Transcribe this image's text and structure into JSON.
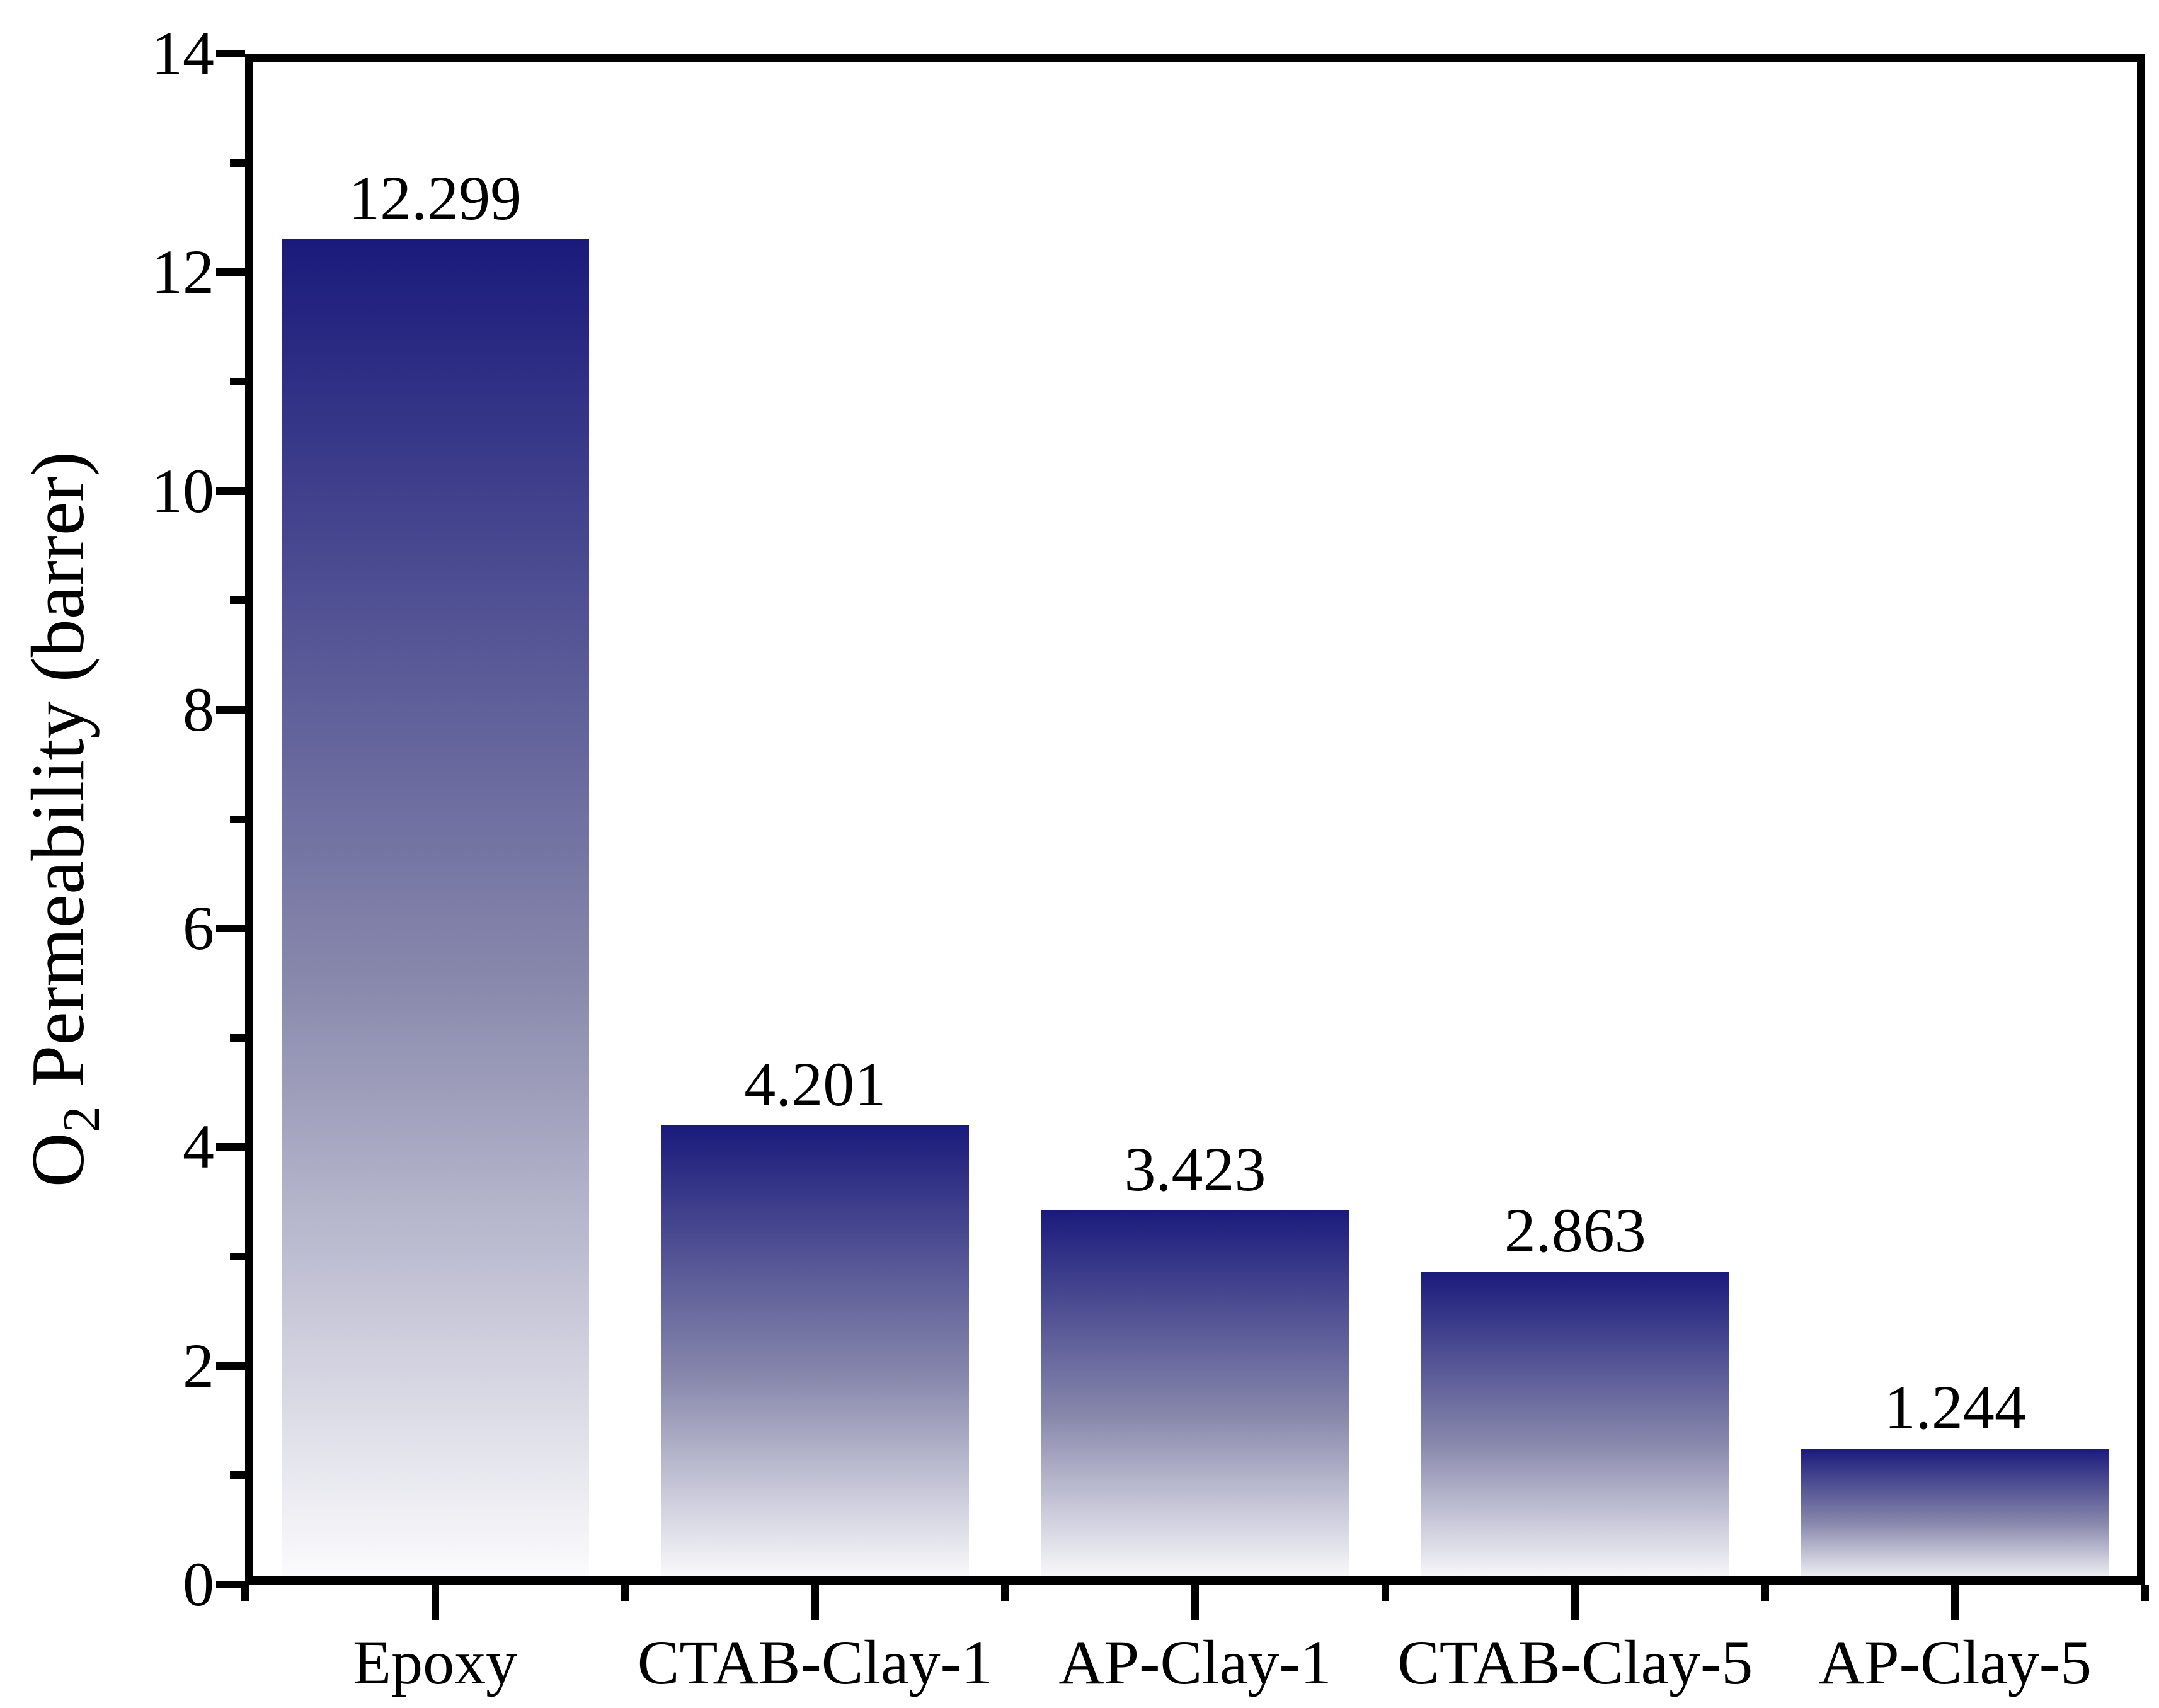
{
  "chart_data": {
    "type": "bar",
    "title": "",
    "categories": [
      "Epoxy",
      "CTAB-Clay-1",
      "AP-Clay-1",
      "CTAB-Clay-5",
      "AP-Clay-5"
    ],
    "values": [
      12.299,
      4.201,
      3.423,
      2.863,
      1.244
    ],
    "value_labels": [
      "12.299",
      "4.201",
      "3.423",
      "2.863",
      "1.244"
    ],
    "xlabel": "",
    "ylabel": "O2 Permeability (barrer)",
    "ylabel_parts": {
      "base": "O",
      "sub": "2",
      "rest": " Permeability (barrer)"
    },
    "ylim": [
      0,
      14
    ],
    "y_tick_labels": [
      "0",
      "2",
      "4",
      "6",
      "8",
      "10",
      "12",
      "14"
    ],
    "y_major_step": 2,
    "y_minor_step": 1,
    "grid": false,
    "legend": false,
    "colors": {
      "bar_gradient_top": "#1a1a7c",
      "bar_gradient_mid": "#8888ac",
      "bar_gradient_bottom": "#fdfdfe",
      "axis": "#000000",
      "text": "#000000"
    }
  }
}
